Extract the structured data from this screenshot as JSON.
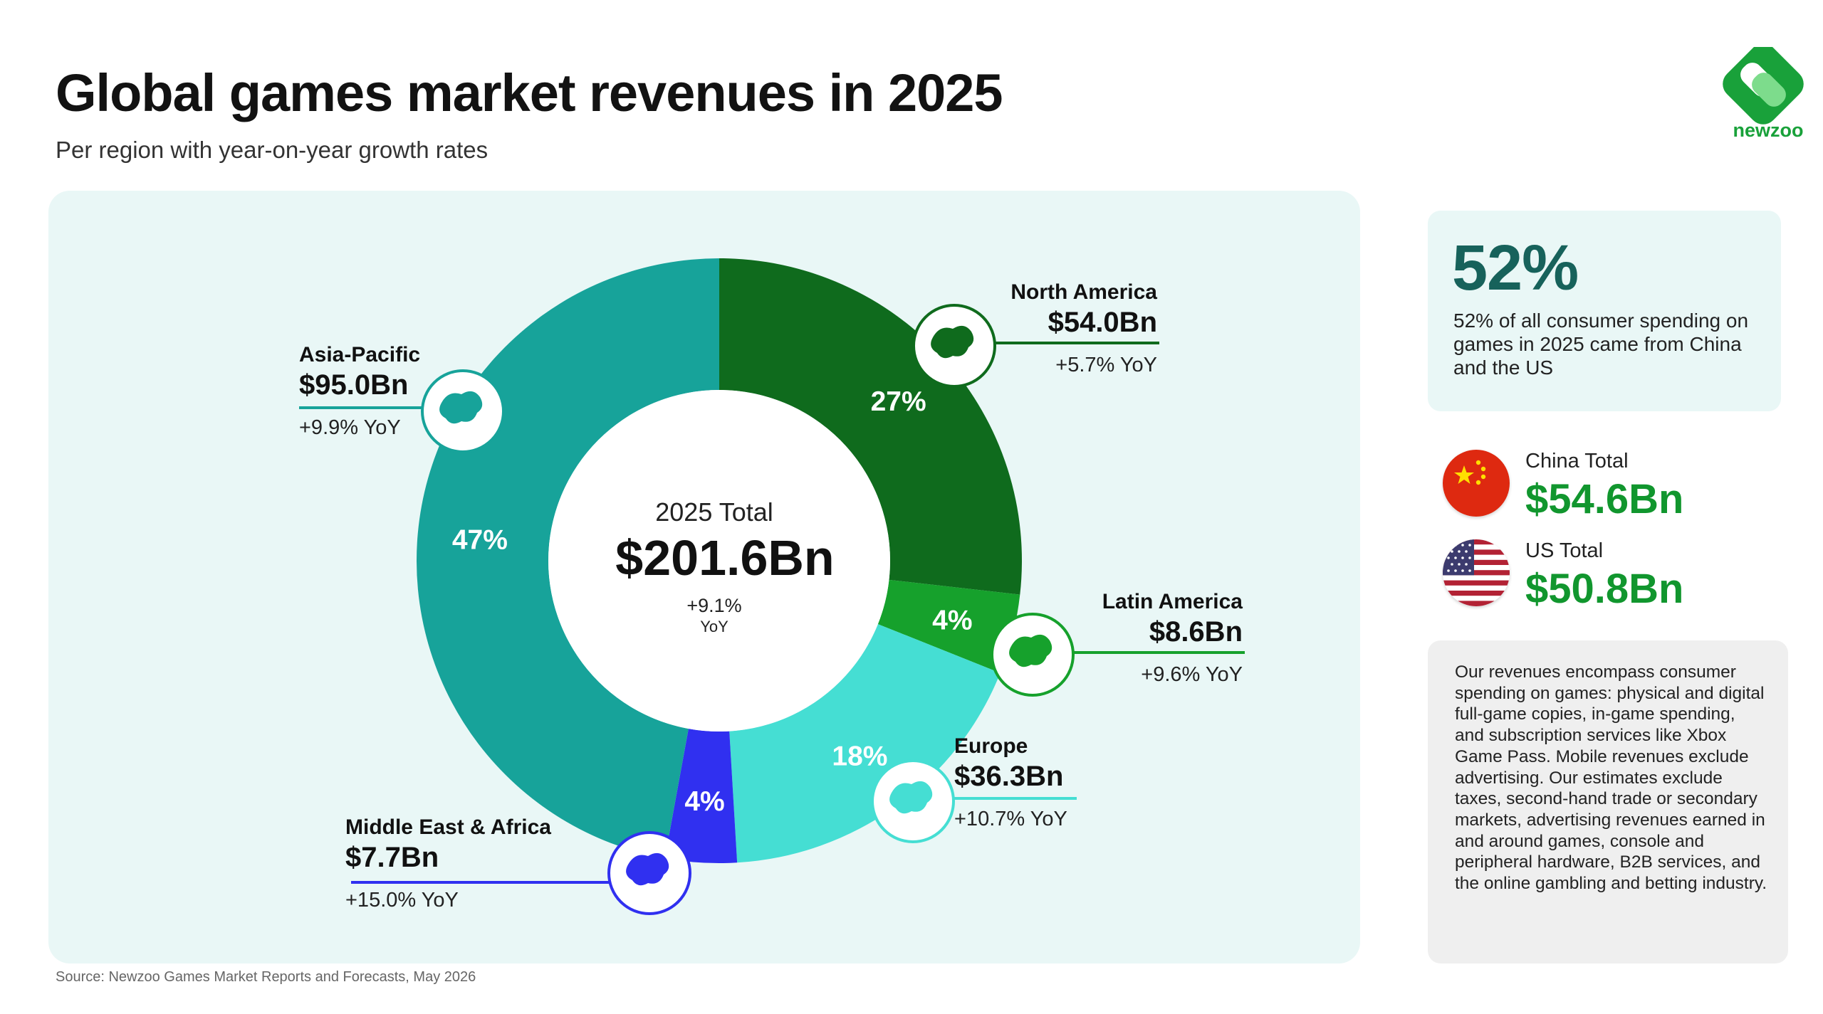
{
  "header": {
    "title": "Global games market revenues in 2025",
    "subtitle": "Per region with year-on-year growth rates",
    "logo_text": "newzoo"
  },
  "chart_data": {
    "type": "pie",
    "variant": "donut",
    "center": {
      "label": "2025 Total",
      "value": "$201.6Bn",
      "growth": "+9.1%",
      "growth_unit": "YoY"
    },
    "series": [
      {
        "name": "North America",
        "value": 54.0,
        "share": 27,
        "share_label": "27%",
        "value_label": "$54.0Bn",
        "growth": "+5.7% YoY",
        "color": "#0f6b1d",
        "icon": "north-america-map-icon"
      },
      {
        "name": "Latin America",
        "value": 8.6,
        "share": 4,
        "share_label": "4%",
        "value_label": "$8.6Bn",
        "growth": "+9.6% YoY",
        "color": "#16a12c",
        "icon": "south-america-map-icon"
      },
      {
        "name": "Europe",
        "value": 36.3,
        "share": 18,
        "share_label": "18%",
        "value_label": "$36.3Bn",
        "growth": "+10.7% YoY",
        "color": "#45ded3",
        "icon": "europe-map-icon"
      },
      {
        "name": "Middle East & Africa",
        "value": 7.7,
        "share": 4,
        "share_label": "4%",
        "value_label": "$7.7Bn",
        "growth": "+15.0% YoY",
        "color": "#3030f0",
        "icon": "africa-map-icon"
      },
      {
        "name": "Asia-Pacific",
        "value": 95.0,
        "share": 47,
        "share_label": "47%",
        "value_label": "$95.0Bn",
        "growth": "+9.9% YoY",
        "color": "#17a39a",
        "icon": "asia-pacific-map-icon"
      }
    ]
  },
  "stat": {
    "big": "52%",
    "text": "52% of all consumer spending on games in 2025 came from China and the US"
  },
  "countries": [
    {
      "label": "China Total",
      "value": "$54.6Bn",
      "flag": "china-flag-icon"
    },
    {
      "label": "US Total",
      "value": "$50.8Bn",
      "flag": "us-flag-icon"
    }
  ],
  "note": "Our revenues encompass consumer spending on games: physical and digital full-game copies, in-game spending, and subscription services like Xbox Game Pass. Mobile revenues exclude advertising. Our estimates exclude taxes, second-hand trade or secondary markets, advertising revenues earned in and around games, console and peripheral hardware, B2B services, and the online gambling and betting industry.",
  "source": "Source: Newzoo Games Market Reports and Forecasts, May 2026",
  "colors": {
    "brand_green": "#19a13a",
    "accent_teal": "#17625b",
    "panel_bg": "#e9f7f6",
    "value_green": "#11962e"
  }
}
